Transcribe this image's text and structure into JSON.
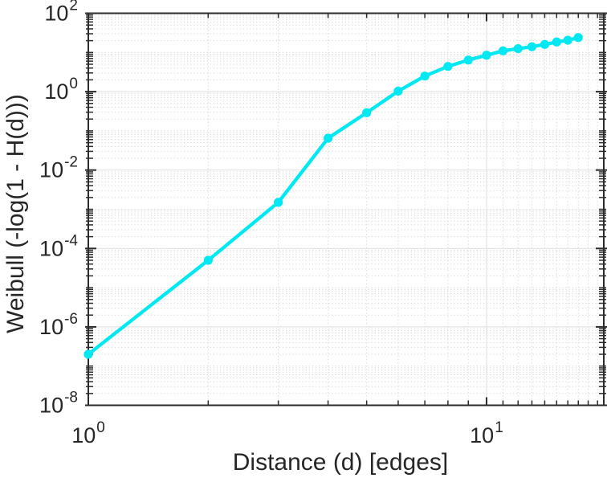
{
  "chart_data": {
    "type": "line",
    "title": "",
    "xlabel": "Distance (d) [edges]",
    "ylabel": "Weibull (-log(1 - H(d)))",
    "x_scale": "log",
    "y_scale": "log",
    "xlim": [
      1,
      19.7
    ],
    "ylim": [
      1e-08,
      100.0
    ],
    "x_tick_exponents": [
      0,
      1
    ],
    "y_tick_exponents": [
      2,
      0,
      -2,
      -4,
      -6,
      -8
    ],
    "grid": "major-solid-minor-dotted",
    "legend": "none",
    "series": [
      {
        "marker": "circle",
        "x": [
          1,
          2,
          3,
          4,
          5,
          6,
          7,
          8,
          9,
          10,
          11,
          12,
          13,
          14,
          15,
          16,
          17
        ],
        "y": [
          2e-07,
          5e-05,
          0.0015,
          0.065,
          0.29,
          1.03,
          2.5,
          4.4,
          6.4,
          8.5,
          11,
          12.5,
          14,
          16,
          18.5,
          20.5,
          24
        ]
      }
    ]
  },
  "colors": {
    "series": "#00e9f2",
    "axis": "#2b2b2b",
    "text": "#262626",
    "grid_major": "#e3e3e3",
    "grid_minor": "#d7d7d7",
    "background": "#ffffff"
  }
}
